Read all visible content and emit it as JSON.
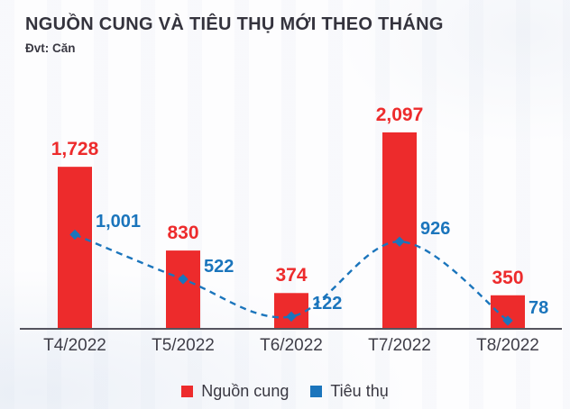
{
  "header": {
    "title": "NGUỒN CUNG VÀ TIÊU THỤ MỚI THEO THÁNG",
    "subtitle": "Đvt: Căn"
  },
  "legend": [
    {
      "label": "Nguồn cung",
      "color": "#ed2b2c"
    },
    {
      "label": "Tiêu thụ",
      "color": "#1b75bc"
    }
  ],
  "colors": {
    "bar_red": "#ed2b2c",
    "line_blue": "#1b75bc",
    "axis_gray": "#55545e",
    "text_dark": "#34333d"
  },
  "chart_data": {
    "type": "bar",
    "title": "NGUỒN CUNG VÀ TIÊU THỤ MỚI THEO THÁNG",
    "unit_label": "Đvt: Căn",
    "categories": [
      "T4/2022",
      "T5/2022",
      "T6/2022",
      "T7/2022",
      "T8/2022"
    ],
    "series": [
      {
        "name": "Nguồn cung",
        "type": "bar",
        "color": "#ed2b2c",
        "values": [
          1728,
          830,
          374,
          2097,
          350
        ]
      },
      {
        "name": "Tiêu thụ",
        "type": "line",
        "color": "#1b75bc",
        "values": [
          1001,
          522,
          122,
          926,
          78
        ]
      }
    ],
    "value_labels_shown": true,
    "ylim": [
      0,
      2200
    ],
    "grid": false,
    "legend_position": "bottom"
  }
}
